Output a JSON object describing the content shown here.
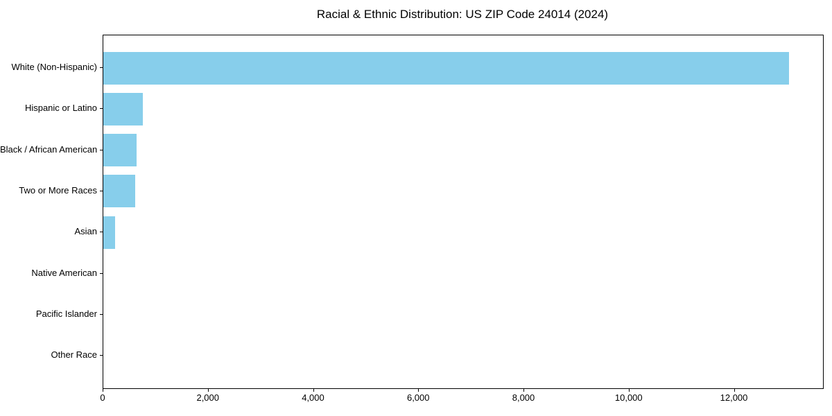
{
  "chart_data": {
    "type": "bar",
    "orientation": "horizontal",
    "title": "Racial & Ethnic Distribution: US ZIP Code 24014 (2024)",
    "categories": [
      "White (Non-Hispanic)",
      "Hispanic or Latino",
      "Black / African American",
      "Two or More Races",
      "Asian",
      "Native American",
      "Pacific Islander",
      "Other Race"
    ],
    "values": [
      13030,
      745,
      630,
      605,
      220,
      0,
      0,
      0
    ],
    "xlabel": "",
    "ylabel": "",
    "xlim": [
      0,
      13680
    ],
    "xticks": [
      0,
      2000,
      4000,
      6000,
      8000,
      10000,
      12000
    ],
    "xtick_labels": [
      "0",
      "2,000",
      "4,000",
      "6,000",
      "8,000",
      "10,000",
      "12,000"
    ],
    "bar_color": "#87CEEB",
    "grid": false,
    "legend": null
  }
}
